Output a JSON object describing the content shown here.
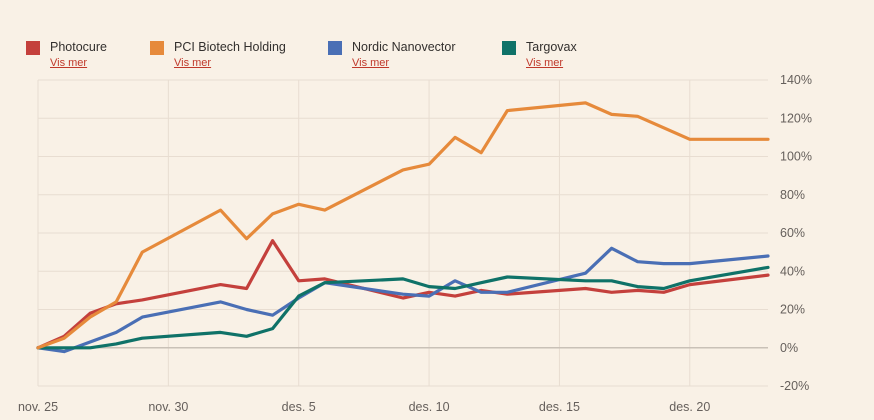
{
  "chart_data": {
    "type": "line",
    "title": "",
    "xlabel": "",
    "ylabel": "",
    "x_ticks": [
      "nov. 25",
      "nov. 30",
      "des. 5",
      "des. 10",
      "des. 15",
      "des. 20"
    ],
    "y_ticks": [
      "140%",
      "120%",
      "100%",
      "80%",
      "60%",
      "40%",
      "20%",
      "0%",
      "-20%"
    ],
    "ylim": [
      -20,
      140
    ],
    "grid": true,
    "legend_position": "top-left",
    "series": [
      {
        "name": "Photocure",
        "link": "Vis mer",
        "color": "#c4403c",
        "points": [
          {
            "x": "2019-11-25",
            "y": 0
          },
          {
            "x": "2019-11-26",
            "y": 6
          },
          {
            "x": "2019-11-27",
            "y": 18
          },
          {
            "x": "2019-11-28",
            "y": 23
          },
          {
            "x": "2019-11-29",
            "y": 25
          },
          {
            "x": "2019-12-02",
            "y": 33
          },
          {
            "x": "2019-12-03",
            "y": 31
          },
          {
            "x": "2019-12-04",
            "y": 56
          },
          {
            "x": "2019-12-05",
            "y": 35
          },
          {
            "x": "2019-12-06",
            "y": 36
          },
          {
            "x": "2019-12-09",
            "y": 26
          },
          {
            "x": "2019-12-10",
            "y": 29
          },
          {
            "x": "2019-12-11",
            "y": 27
          },
          {
            "x": "2019-12-12",
            "y": 30
          },
          {
            "x": "2019-12-13",
            "y": 28
          },
          {
            "x": "2019-12-16",
            "y": 31
          },
          {
            "x": "2019-12-17",
            "y": 29
          },
          {
            "x": "2019-12-18",
            "y": 30
          },
          {
            "x": "2019-12-19",
            "y": 29
          },
          {
            "x": "2019-12-20",
            "y": 33
          },
          {
            "x": "2019-12-23",
            "y": 38
          }
        ]
      },
      {
        "name": "PCI Biotech Holding",
        "link": "Vis mer",
        "color": "#e68a3b",
        "points": [
          {
            "x": "2019-11-25",
            "y": 0
          },
          {
            "x": "2019-11-26",
            "y": 5
          },
          {
            "x": "2019-11-27",
            "y": 16
          },
          {
            "x": "2019-11-28",
            "y": 24
          },
          {
            "x": "2019-11-29",
            "y": 50
          },
          {
            "x": "2019-12-02",
            "y": 72
          },
          {
            "x": "2019-12-03",
            "y": 57
          },
          {
            "x": "2019-12-04",
            "y": 70
          },
          {
            "x": "2019-12-05",
            "y": 75
          },
          {
            "x": "2019-12-06",
            "y": 72
          },
          {
            "x": "2019-12-09",
            "y": 93
          },
          {
            "x": "2019-12-10",
            "y": 96
          },
          {
            "x": "2019-12-11",
            "y": 110
          },
          {
            "x": "2019-12-12",
            "y": 102
          },
          {
            "x": "2019-12-13",
            "y": 124
          },
          {
            "x": "2019-12-16",
            "y": 128
          },
          {
            "x": "2019-12-17",
            "y": 122
          },
          {
            "x": "2019-12-18",
            "y": 121
          },
          {
            "x": "2019-12-20",
            "y": 109
          },
          {
            "x": "2019-12-23",
            "y": 109
          }
        ]
      },
      {
        "name": "Nordic Nanovector",
        "link": "Vis mer",
        "color": "#4a6fb5",
        "points": [
          {
            "x": "2019-11-25",
            "y": 0
          },
          {
            "x": "2019-11-26",
            "y": -2
          },
          {
            "x": "2019-11-27",
            "y": 3
          },
          {
            "x": "2019-11-28",
            "y": 8
          },
          {
            "x": "2019-11-29",
            "y": 16
          },
          {
            "x": "2019-12-02",
            "y": 24
          },
          {
            "x": "2019-12-03",
            "y": 20
          },
          {
            "x": "2019-12-04",
            "y": 17
          },
          {
            "x": "2019-12-05",
            "y": 26
          },
          {
            "x": "2019-12-06",
            "y": 34
          },
          {
            "x": "2019-12-09",
            "y": 28
          },
          {
            "x": "2019-12-10",
            "y": 27
          },
          {
            "x": "2019-12-11",
            "y": 35
          },
          {
            "x": "2019-12-12",
            "y": 29
          },
          {
            "x": "2019-12-13",
            "y": 29
          },
          {
            "x": "2019-12-16",
            "y": 39
          },
          {
            "x": "2019-12-17",
            "y": 52
          },
          {
            "x": "2019-12-18",
            "y": 45
          },
          {
            "x": "2019-12-19",
            "y": 44
          },
          {
            "x": "2019-12-20",
            "y": 44
          },
          {
            "x": "2019-12-23",
            "y": 48
          }
        ]
      },
      {
        "name": "Targovax",
        "link": "Vis mer",
        "color": "#0f7268",
        "points": [
          {
            "x": "2019-11-25",
            "y": 0
          },
          {
            "x": "2019-11-26",
            "y": 0
          },
          {
            "x": "2019-11-27",
            "y": 0
          },
          {
            "x": "2019-11-28",
            "y": 2
          },
          {
            "x": "2019-11-29",
            "y": 5
          },
          {
            "x": "2019-12-02",
            "y": 8
          },
          {
            "x": "2019-12-03",
            "y": 6
          },
          {
            "x": "2019-12-04",
            "y": 10
          },
          {
            "x": "2019-12-05",
            "y": 27
          },
          {
            "x": "2019-12-06",
            "y": 34
          },
          {
            "x": "2019-12-09",
            "y": 36
          },
          {
            "x": "2019-12-10",
            "y": 32
          },
          {
            "x": "2019-12-11",
            "y": 31
          },
          {
            "x": "2019-12-12",
            "y": 34
          },
          {
            "x": "2019-12-13",
            "y": 37
          },
          {
            "x": "2019-12-16",
            "y": 35
          },
          {
            "x": "2019-12-17",
            "y": 35
          },
          {
            "x": "2019-12-18",
            "y": 32
          },
          {
            "x": "2019-12-19",
            "y": 31
          },
          {
            "x": "2019-12-20",
            "y": 35
          },
          {
            "x": "2019-12-23",
            "y": 42
          }
        ]
      }
    ]
  }
}
